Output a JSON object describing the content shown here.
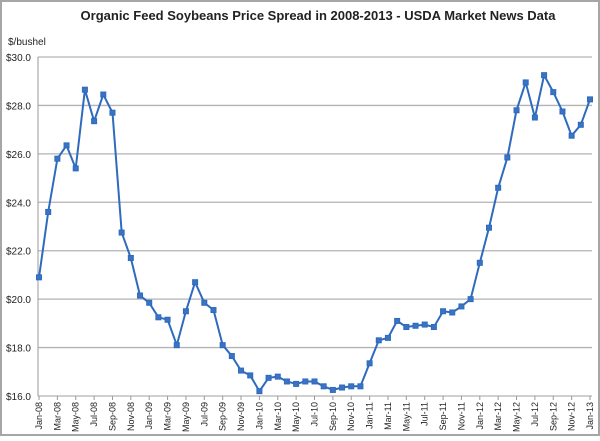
{
  "chart_data": {
    "type": "line",
    "title": "Organic Feed Soybeans Price Spread in 2008-2013 - USDA Market News Data",
    "ylabel": "$/bushel",
    "xlabel": "",
    "ylim": [
      16,
      30
    ],
    "y_ticks": [
      "$16.0",
      "$18.0",
      "$20.0",
      "$22.0",
      "$24.0",
      "$26.0",
      "$28.0",
      "$30.0"
    ],
    "y_tick_values": [
      16,
      18,
      20,
      22,
      24,
      26,
      28,
      30
    ],
    "grid": "horizontal",
    "legend": "none",
    "color": "#2e6bbd",
    "x_tick_labels": [
      "Jan-08",
      "Mar-08",
      "May-08",
      "Jul-08",
      "Sep-08",
      "Nov-08",
      "Jan-09",
      "Mar-09",
      "May-09",
      "Jul-09",
      "Sep-09",
      "Nov-09",
      "Jan-10",
      "Mar-10",
      "May-10",
      "Jul-10",
      "Sep-10",
      "Nov-10",
      "Jan-11",
      "Mar-11",
      "May-11",
      "Jul-11",
      "Sep-11",
      "Nov-11",
      "Jan-12",
      "Mar-12",
      "May-12",
      "Jul-12",
      "Sep-12",
      "Nov-12",
      "Jan-13"
    ],
    "series": [
      {
        "name": "Organic Feed Soybeans",
        "values": [
          20.9,
          23.6,
          25.8,
          26.35,
          25.4,
          28.65,
          27.35,
          28.45,
          27.7,
          22.75,
          21.7,
          20.15,
          19.85,
          19.25,
          19.15,
          18.1,
          19.5,
          20.7,
          19.85,
          19.55,
          18.1,
          17.65,
          17.05,
          16.85,
          16.2,
          16.75,
          16.8,
          16.6,
          16.5,
          16.6,
          16.6,
          16.4,
          16.25,
          16.35,
          16.4,
          16.4,
          17.35,
          18.3,
          18.4,
          19.1,
          18.85,
          18.9,
          18.95,
          18.85,
          19.5,
          19.45,
          19.7,
          20.0,
          21.5,
          22.95,
          24.6,
          25.85,
          27.8,
          28.95,
          27.5,
          29.25,
          28.55,
          27.75,
          26.75,
          27.2,
          28.25
        ]
      }
    ]
  }
}
